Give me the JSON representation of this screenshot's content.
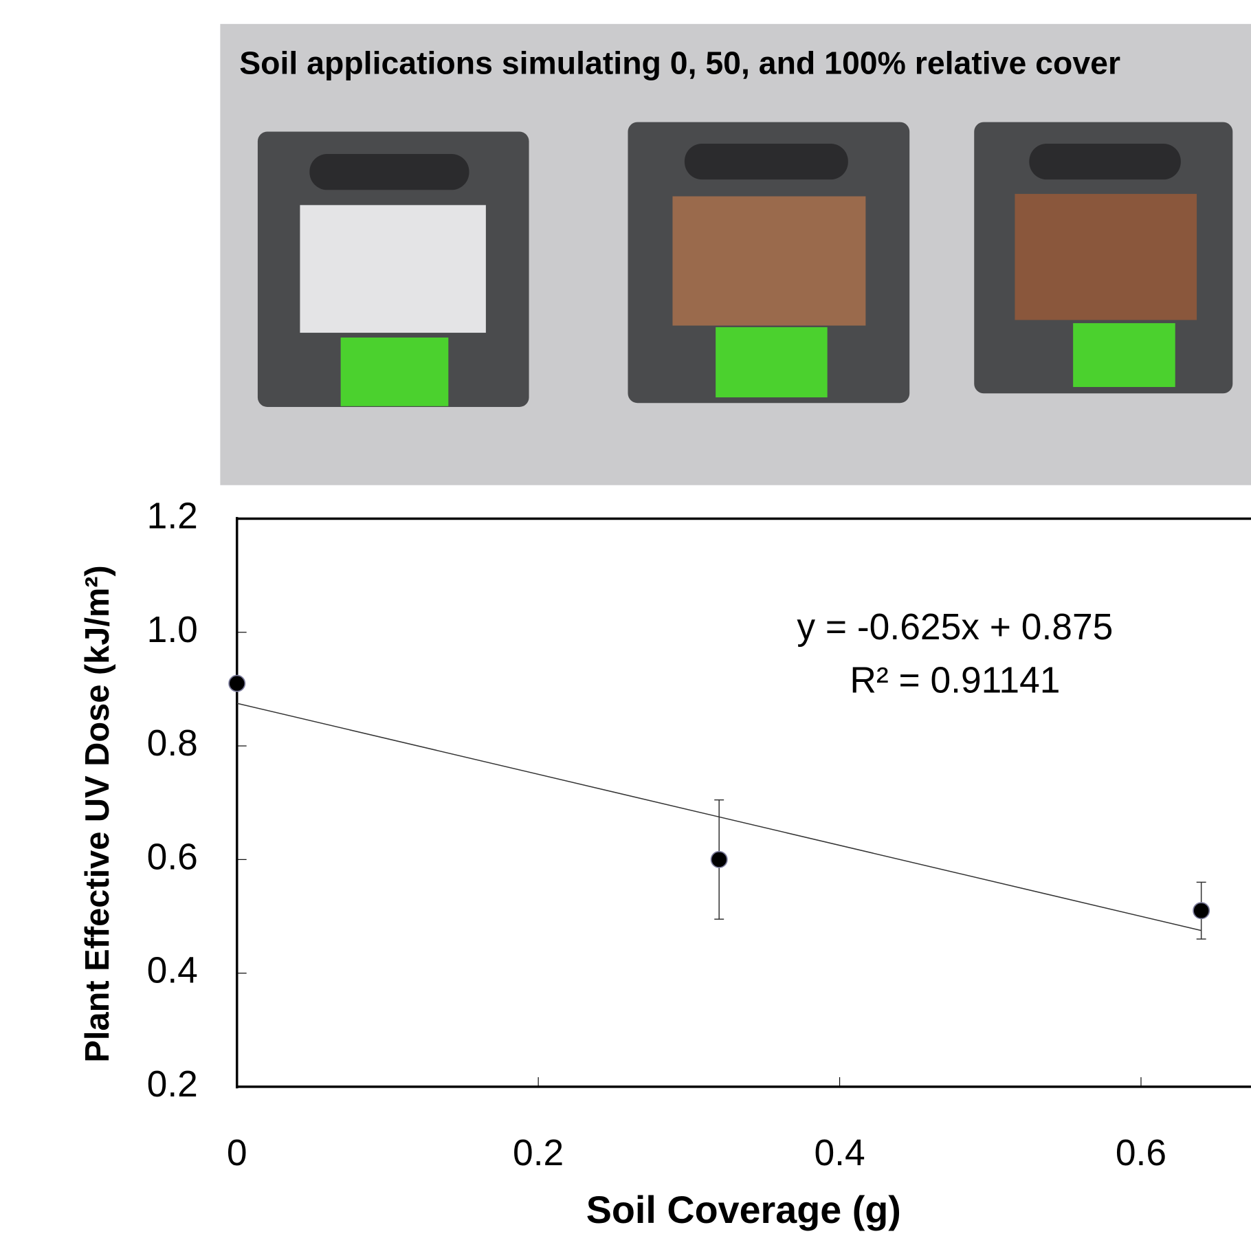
{
  "photo_caption": "Soil applications simulating 0, 50, and 100% relative cover",
  "chart_data": {
    "type": "scatter",
    "xlabel": "Soil Coverage (g)",
    "ylabel": "Plant Effective UV Dose (kJ/m²)",
    "annotations": [
      "y = -0.625x + 0.875",
      "R² = 0.91141"
    ],
    "x": [
      0,
      0.32,
      0.64
    ],
    "values": [
      0.91,
      0.6,
      0.51
    ],
    "errors": [
      0,
      0.105,
      0.05
    ],
    "color": "#000000",
    "trendline": {
      "x": [
        0,
        0.64
      ],
      "values": [
        0.875,
        0.475
      ],
      "color": "#333333"
    },
    "xlim": [
      0,
      0.673
    ],
    "ylim": [
      0.2,
      1.2
    ],
    "xticks": [
      0,
      0.2,
      0.4,
      0.6
    ],
    "yticks": [
      {
        "value": 0.2,
        "label": "0.2"
      },
      {
        "value": 0.4,
        "label": "0.4"
      },
      {
        "value": 0.6,
        "label": "0.6"
      },
      {
        "value": 0.8,
        "label": "0.8"
      },
      {
        "value": 1.0,
        "label": "1.0"
      },
      {
        "value": 1.2,
        "label": "1.2"
      }
    ]
  }
}
